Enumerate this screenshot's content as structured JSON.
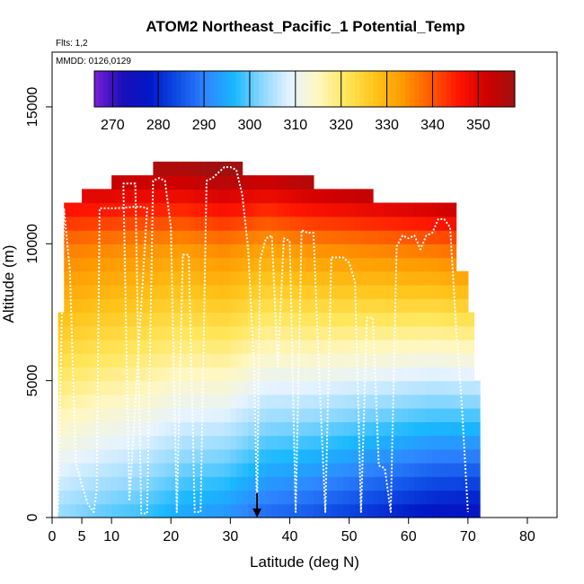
{
  "chart_data": {
    "type": "heatmap",
    "title": "ATOM2 Northeast_Pacific_1 Potential_Temp",
    "flights_note": "Flts: 1,2",
    "date_note": "MMDD: 0126,0129",
    "xlabel": "Latitude (deg N)",
    "ylabel": "Altitude (m)",
    "xlim": [
      0,
      85
    ],
    "ylim": [
      0,
      17000
    ],
    "x_ticks": [
      0,
      5,
      10,
      20,
      30,
      40,
      50,
      60,
      70,
      80
    ],
    "y_ticks": [
      0,
      5000,
      10000,
      15000
    ],
    "colorbar": {
      "range": [
        266,
        358
      ],
      "ticks": [
        270,
        280,
        290,
        300,
        310,
        320,
        330,
        340,
        350
      ],
      "colors": [
        "#7a1fd6",
        "#1a0fb8",
        "#0018c8",
        "#0f4ee6",
        "#2f86ff",
        "#19b8ff",
        "#8fd8ff",
        "#e6f3ff",
        "#fff7c0",
        "#ffe65a",
        "#ffc41a",
        "#ff9a00",
        "#ff5a00",
        "#ff1400",
        "#cf0000",
        "#a11010"
      ]
    },
    "grid": false,
    "marker_latitude": 34.5,
    "value_model": {
      "columns_latitude": [
        1,
        8,
        15,
        22,
        29,
        36,
        43,
        50,
        57,
        64,
        71
      ],
      "boundary_theta_by_column": [
        303,
        300,
        298,
        294,
        292,
        287,
        285,
        282,
        279,
        276,
        275
      ],
      "lapse_k_per_km_by_column": [
        3.4,
        3.6,
        3.7,
        4.0,
        4.4,
        4.6,
        5.0,
        5.4,
        5.8,
        6.2,
        6.5
      ]
    },
    "coverage": [
      {
        "lat": [
          1.5,
          72
        ],
        "alt_max": 5000
      },
      {
        "lat": [
          1.5,
          71
        ],
        "alt_max": 7500
      },
      {
        "lat": [
          2,
          70
        ],
        "alt_max": 9000
      },
      {
        "lat": [
          2,
          68
        ],
        "alt_max": 11500
      },
      {
        "lat": [
          5,
          54
        ],
        "alt_max": 12000
      },
      {
        "lat": [
          10,
          44
        ],
        "alt_max": 12500
      },
      {
        "lat": [
          17,
          32
        ],
        "alt_max": 13000
      }
    ],
    "flight_track": [
      [
        1,
        200
      ],
      [
        2,
        11300
      ],
      [
        3,
        9000
      ],
      [
        4,
        2000
      ],
      [
        5,
        1200
      ],
      [
        6,
        500
      ],
      [
        7,
        200
      ],
      [
        7.5,
        1000
      ],
      [
        8,
        11300
      ],
      [
        11,
        11300
      ],
      [
        14,
        11350
      ],
      [
        15,
        11350
      ],
      [
        16,
        11300
      ],
      [
        13,
        600
      ],
      [
        12,
        12200
      ],
      [
        14,
        12200
      ],
      [
        15,
        150
      ],
      [
        16,
        150
      ],
      [
        17,
        12300
      ],
      [
        18,
        12400
      ],
      [
        19,
        12300
      ],
      [
        20,
        10600
      ],
      [
        21,
        200
      ],
      [
        22,
        9600
      ],
      [
        23,
        9600
      ],
      [
        24,
        200
      ],
      [
        25,
        200
      ],
      [
        26,
        12300
      ],
      [
        27,
        12400
      ],
      [
        28,
        12600
      ],
      [
        29,
        12800
      ],
      [
        30,
        12800
      ],
      [
        31,
        12700
      ],
      [
        32,
        11800
      ],
      [
        33,
        9800
      ],
      [
        34,
        5500
      ],
      [
        34.5,
        200
      ],
      [
        35,
        9400
      ],
      [
        36,
        10200
      ],
      [
        37,
        10300
      ],
      [
        38,
        5500
      ],
      [
        39,
        10200
      ],
      [
        40,
        10100
      ],
      [
        41,
        200
      ],
      [
        42,
        10500
      ],
      [
        43,
        10400
      ],
      [
        44,
        10400
      ],
      [
        45,
        5000
      ],
      [
        46,
        200
      ],
      [
        47,
        9500
      ],
      [
        48,
        9500
      ],
      [
        49,
        9500
      ],
      [
        50,
        9300
      ],
      [
        51,
        8600
      ],
      [
        52,
        200
      ],
      [
        53,
        7300
      ],
      [
        54,
        7300
      ],
      [
        55,
        1900
      ],
      [
        56,
        1800
      ],
      [
        57,
        200
      ],
      [
        58,
        9900
      ],
      [
        59,
        10300
      ],
      [
        60,
        10200
      ],
      [
        61,
        10300
      ],
      [
        62,
        9800
      ],
      [
        63,
        10300
      ],
      [
        64,
        10400
      ],
      [
        65,
        10900
      ],
      [
        66,
        10900
      ],
      [
        67,
        10600
      ],
      [
        68,
        7000
      ],
      [
        69,
        4000
      ],
      [
        70,
        200
      ]
    ]
  }
}
